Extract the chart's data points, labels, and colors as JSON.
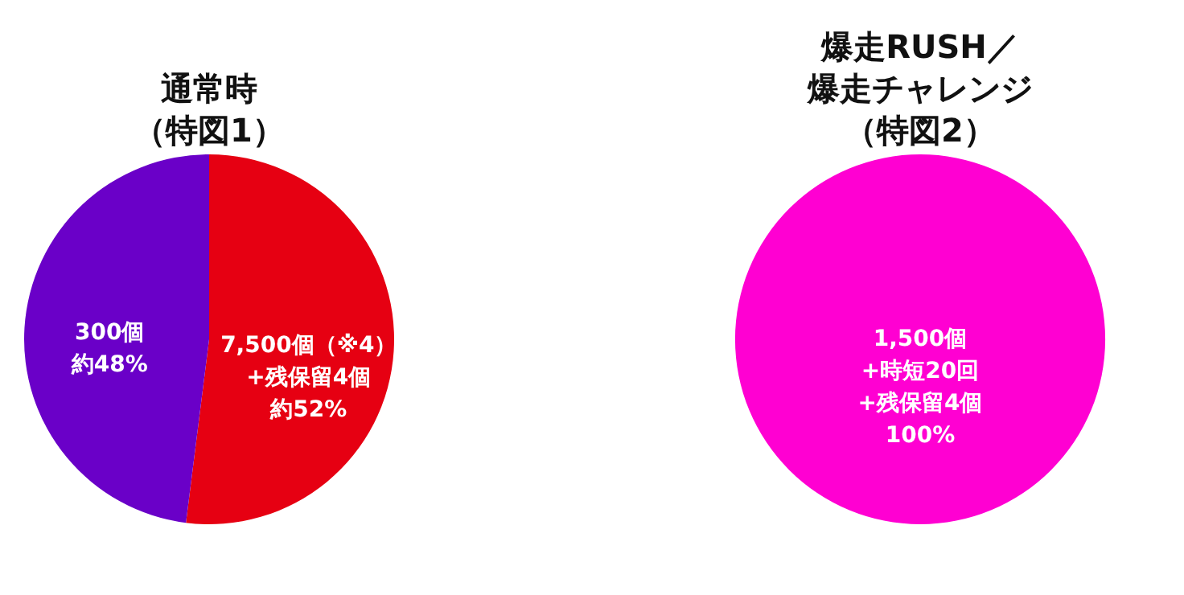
{
  "chart_data": [
    {
      "type": "pie",
      "title": "通常時（特図1）",
      "categories": [
        "7,500個（※4）\n+残保留4個",
        "300個"
      ],
      "values": [
        52,
        48
      ],
      "colors": [
        "#e60012",
        "#6a00c8"
      ],
      "value_labels": [
        "約52%",
        "約48%"
      ]
    },
    {
      "type": "pie",
      "title": "爆走RUSH／爆走チャレンジ（特図2）",
      "categories": [
        "1,500個\n+時短20回\n+残保留4個"
      ],
      "values": [
        100
      ],
      "colors": [
        "#ff00d2"
      ],
      "value_labels": [
        "100%"
      ]
    }
  ]
}
